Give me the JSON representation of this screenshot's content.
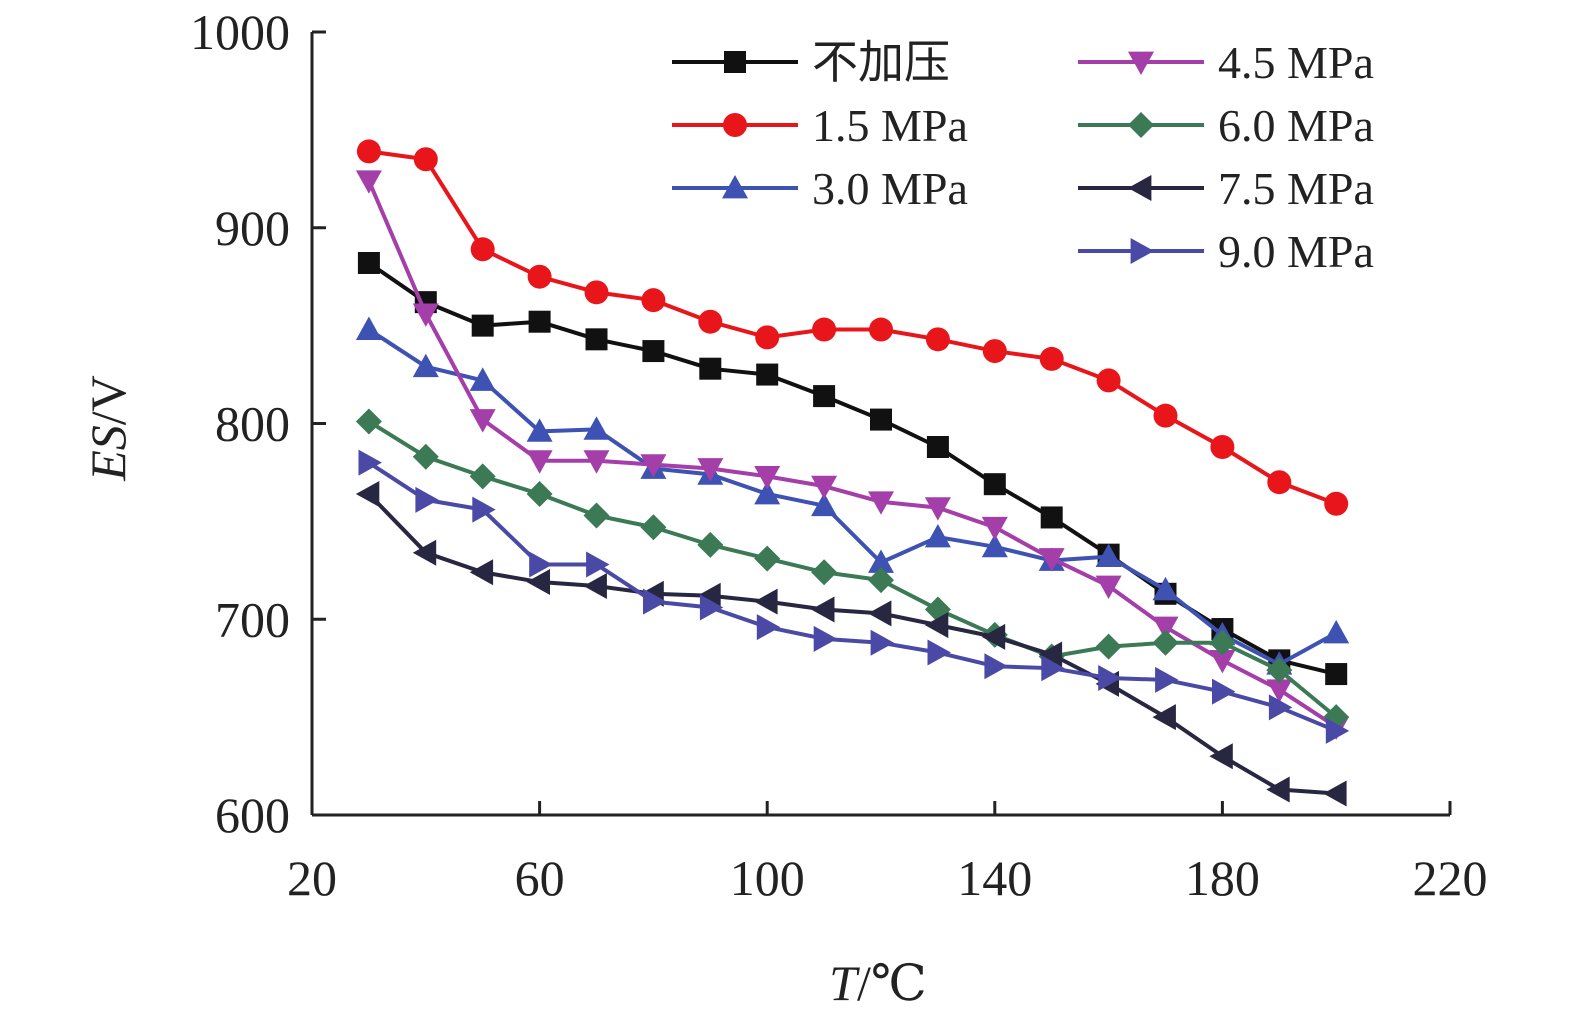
{
  "chart_data": {
    "type": "line",
    "xlabel_italic": "T",
    "xlabel_unit": "/℃",
    "ylabel_italic": "ES",
    "ylabel_unit": "/V",
    "xlim": [
      20,
      220
    ],
    "ylim": [
      600,
      1000
    ],
    "xticks": [
      "20",
      "60",
      "100",
      "140",
      "180",
      "220"
    ],
    "yticks": [
      "600",
      "700",
      "800",
      "900",
      "1000"
    ],
    "x": [
      30,
      40,
      50,
      60,
      70,
      80,
      90,
      100,
      110,
      120,
      130,
      140,
      150,
      160,
      170,
      180,
      190,
      200
    ],
    "legend_position": "top-right",
    "series": [
      {
        "name": "不加压",
        "color": "#111111",
        "marker": "square",
        "values": [
          882,
          862,
          850,
          852,
          843,
          837,
          828,
          825,
          814,
          802,
          788,
          769,
          752,
          733,
          713,
          695,
          679,
          672
        ]
      },
      {
        "name": "1.5 MPa",
        "color": "#e8161b",
        "marker": "circle",
        "values": [
          939,
          935,
          889,
          875,
          867,
          863,
          852,
          844,
          848,
          848,
          843,
          837,
          833,
          822,
          804,
          788,
          770,
          759
        ]
      },
      {
        "name": "3.0 MPa",
        "color": "#3d52b3",
        "marker": "triangle-up",
        "values": [
          848,
          829,
          822,
          796,
          797,
          777,
          774,
          764,
          758,
          729,
          742,
          737,
          730,
          732,
          715,
          692,
          677,
          693
        ]
      },
      {
        "name": "4.5 MPa",
        "color": "#a43ea8",
        "marker": "triangle-down",
        "values": [
          924,
          856,
          802,
          781,
          781,
          779,
          777,
          773,
          768,
          760,
          757,
          747,
          731,
          717,
          696,
          679,
          664,
          645
        ]
      },
      {
        "name": "6.0 MPa",
        "color": "#3c7a55",
        "marker": "diamond",
        "values": [
          801,
          783,
          773,
          764,
          753,
          747,
          738,
          731,
          724,
          720,
          705,
          692,
          681,
          686,
          688,
          688,
          674,
          650
        ]
      },
      {
        "name": "7.5 MPa",
        "color": "#272742",
        "marker": "triangle-left",
        "values": [
          764,
          734,
          724,
          719,
          717,
          713,
          712,
          709,
          705,
          703,
          697,
          691,
          682,
          667,
          650,
          630,
          613,
          611
        ]
      },
      {
        "name": "9.0 MPa",
        "color": "#4a4aa6",
        "marker": "triangle-right",
        "values": [
          780,
          761,
          756,
          728,
          728,
          709,
          706,
          696,
          690,
          688,
          683,
          676,
          675,
          670,
          669,
          663,
          655,
          643
        ]
      }
    ]
  }
}
